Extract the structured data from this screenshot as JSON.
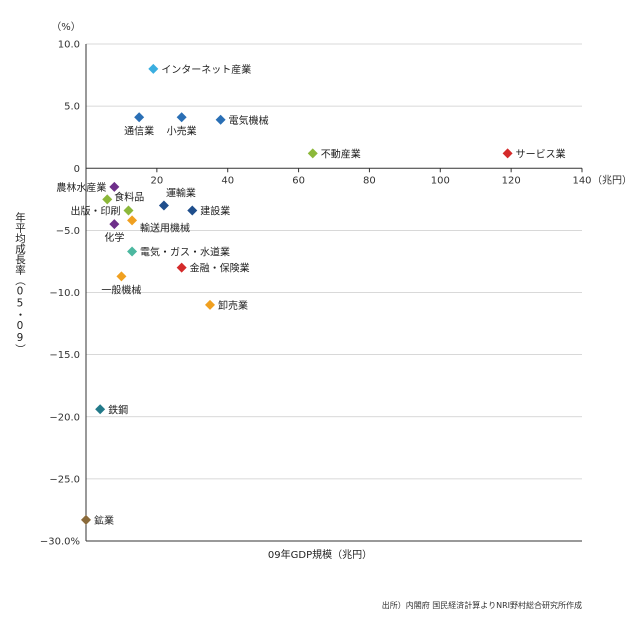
{
  "chart_data": {
    "type": "scatter",
    "title": "",
    "xlabel": "09年GDP規模（兆円）",
    "ylabel": "年平均成長率（05・09）",
    "x_unit": "（兆円）",
    "y_unit": "（%）",
    "xlim": [
      0,
      140
    ],
    "ylim": [
      -30,
      10
    ],
    "xticks": [
      "20",
      "40",
      "60",
      "80",
      "100",
      "120",
      "140"
    ],
    "yticks": [
      "10.0",
      "5.0",
      "0",
      "−5.0",
      "−10.0",
      "−15.0",
      "−20.0",
      "−25.0",
      "−30.0%"
    ],
    "grid": "horizontal",
    "points": [
      {
        "label": "インターネット産業",
        "x": 19,
        "y": 8.0,
        "color": "#3aaee0",
        "label_pos": "right"
      },
      {
        "label": "通信業",
        "x": 15,
        "y": 4.1,
        "color": "#2a6fb5",
        "label_pos": "below"
      },
      {
        "label": "小売業",
        "x": 27,
        "y": 4.1,
        "color": "#2a6fb5",
        "label_pos": "below"
      },
      {
        "label": "電気機械",
        "x": 38,
        "y": 3.9,
        "color": "#2a6fb5",
        "label_pos": "right"
      },
      {
        "label": "不動産業",
        "x": 64,
        "y": 1.2,
        "color": "#8cb83a",
        "label_pos": "right"
      },
      {
        "label": "サービス業",
        "x": 119,
        "y": 1.2,
        "color": "#d42a2a",
        "label_pos": "right"
      },
      {
        "label": "農林水産業",
        "x": 8,
        "y": -1.5,
        "color": "#6e2f8a",
        "label_pos": "left"
      },
      {
        "label": "食料品",
        "x": 6,
        "y": -2.5,
        "color": "#8cb83a",
        "label_pos": "right-up"
      },
      {
        "label": "出版・印刷",
        "x": 12,
        "y": -3.4,
        "color": "#8cb83a",
        "label_pos": "left"
      },
      {
        "label": "運輸業",
        "x": 22,
        "y": -3.0,
        "color": "#1f4e8c",
        "label_pos": "above-right"
      },
      {
        "label": "建設業",
        "x": 30,
        "y": -3.4,
        "color": "#1f4e8c",
        "label_pos": "right"
      },
      {
        "label": "輸送用機械",
        "x": 13,
        "y": -4.2,
        "color": "#f0a020",
        "label_pos": "right-down"
      },
      {
        "label": "化学",
        "x": 8,
        "y": -4.5,
        "color": "#6e2f8a",
        "label_pos": "below"
      },
      {
        "label": "電気・ガス・水道業",
        "x": 13,
        "y": -6.7,
        "color": "#4cb8a0",
        "label_pos": "right"
      },
      {
        "label": "金融・保険業",
        "x": 27,
        "y": -8.0,
        "color": "#d42a2a",
        "label_pos": "right"
      },
      {
        "label": "一般機械",
        "x": 10,
        "y": -8.7,
        "color": "#f0a020",
        "label_pos": "below"
      },
      {
        "label": "卸売業",
        "x": 35,
        "y": -11.0,
        "color": "#f0a020",
        "label_pos": "right"
      },
      {
        "label": "鉄鋼",
        "x": 4,
        "y": -19.4,
        "color": "#237a8a",
        "label_pos": "right"
      },
      {
        "label": "鉱業",
        "x": 0,
        "y": -28.3,
        "color": "#8a6a3a",
        "label_pos": "right"
      }
    ]
  },
  "source_note": "出所）内閣府 国民経済計算よりNRI野村総合研究所作成"
}
